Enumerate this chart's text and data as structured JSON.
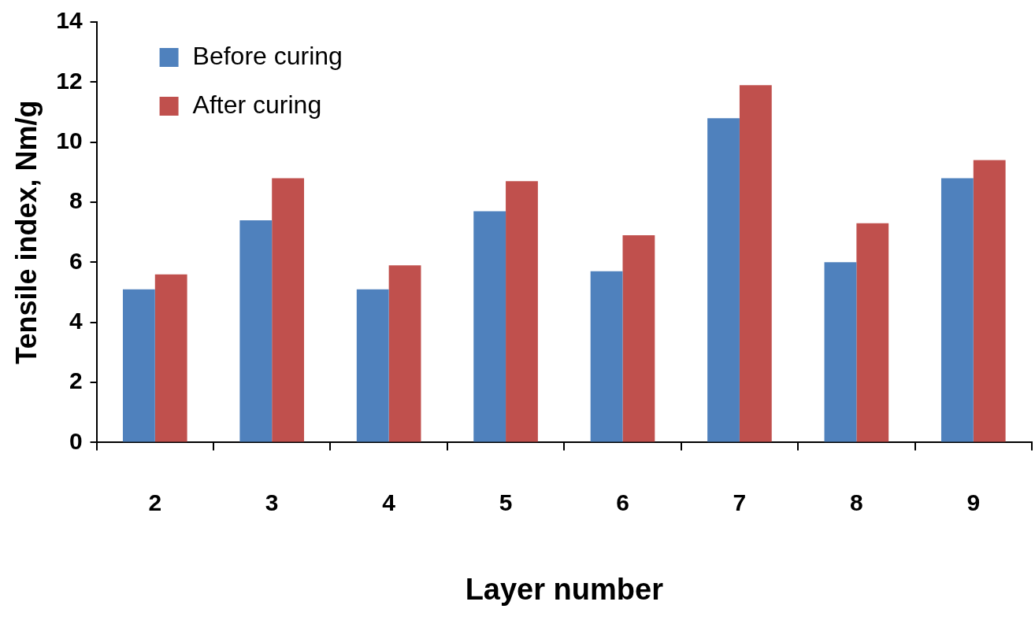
{
  "chart_data": {
    "type": "bar",
    "xlabel": "Layer number",
    "ylabel": "Tensile index, Nm/g",
    "categories": [
      "2",
      "3",
      "4",
      "5",
      "6",
      "7",
      "8",
      "9"
    ],
    "series": [
      {
        "name": "Before curing",
        "color": "#4f81bd",
        "values": [
          5.1,
          7.4,
          5.1,
          7.7,
          5.7,
          10.8,
          6.0,
          8.8
        ]
      },
      {
        "name": "After curing",
        "color": "#c0504d",
        "values": [
          5.6,
          8.8,
          5.9,
          8.7,
          6.9,
          11.9,
          7.3,
          9.4
        ]
      }
    ],
    "ylim": [
      0,
      14
    ],
    "yticks": [
      0,
      2,
      4,
      6,
      8,
      10,
      12,
      14
    ],
    "grid": false,
    "legend": "top left"
  }
}
